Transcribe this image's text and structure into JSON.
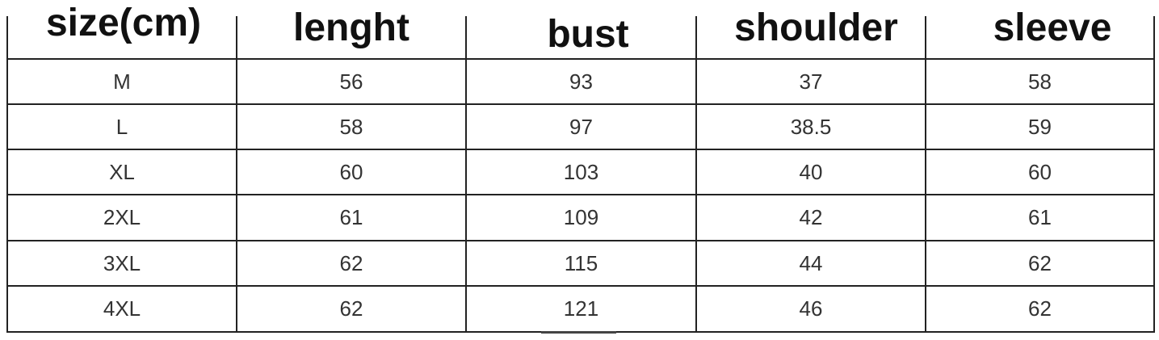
{
  "headers": [
    "size(cm)",
    "lenght",
    "bust",
    "shoulder",
    "sleeve"
  ],
  "rows": [
    [
      "M",
      "56",
      "93",
      "37",
      "58"
    ],
    [
      "L",
      "58",
      "97",
      "38.5",
      "59"
    ],
    [
      "XL",
      "60",
      "103",
      "40",
      "60"
    ],
    [
      "2XL",
      "61",
      "109",
      "42",
      "61"
    ],
    [
      "3XL",
      "62",
      "115",
      "44",
      "62"
    ],
    [
      "4XL",
      "62",
      "121",
      "46",
      "62"
    ]
  ]
}
